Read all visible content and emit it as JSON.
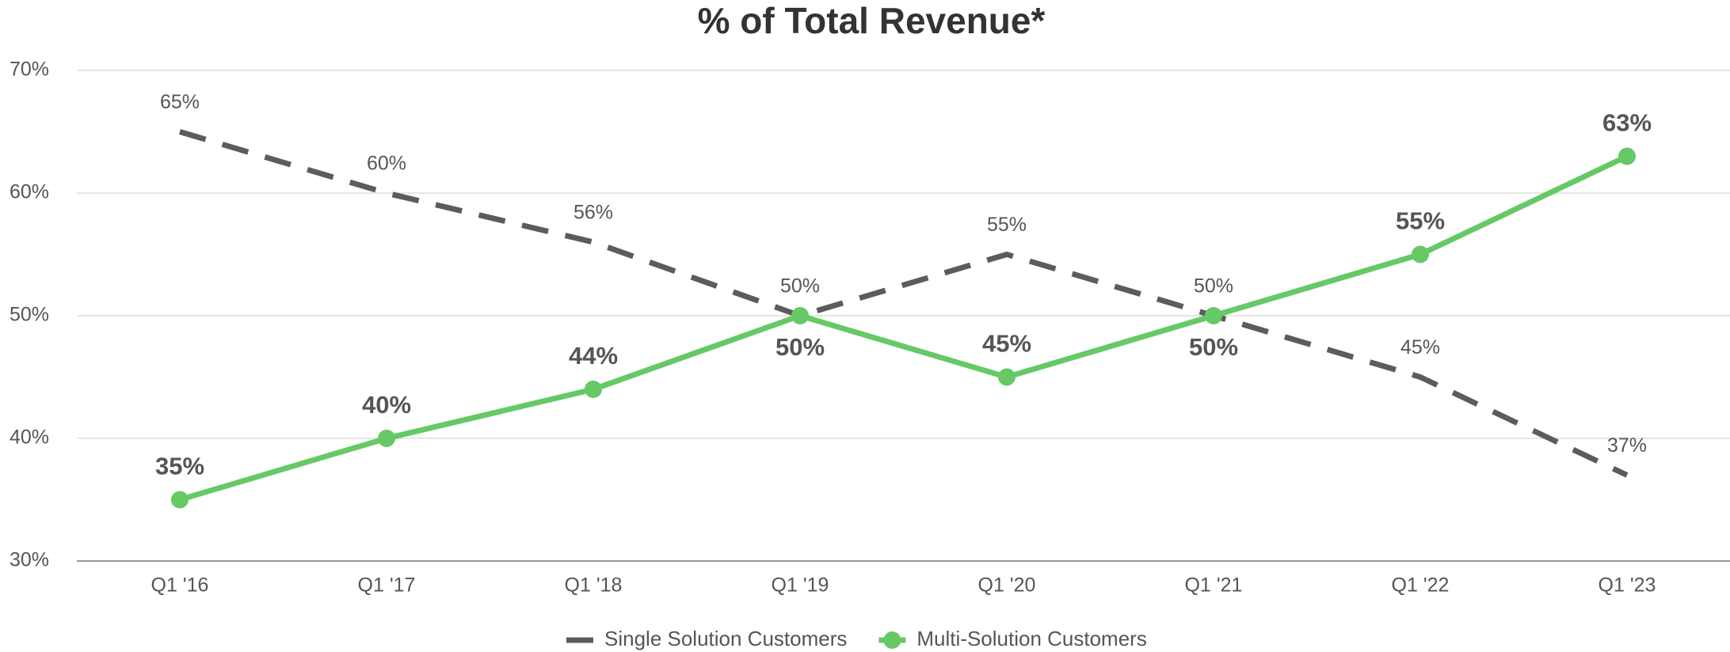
{
  "chart_data": {
    "type": "line",
    "title": "% of Total Revenue*",
    "categories": [
      "Q1 '16",
      "Q1 '17",
      "Q1 '18",
      "Q1 '19",
      "Q1 '20",
      "Q1 '21",
      "Q1 '22",
      "Q1 '23"
    ],
    "series": [
      {
        "name": "Single Solution Customers",
        "color": "#5c5c5c",
        "dashed": true,
        "values": [
          65,
          60,
          56,
          50,
          55,
          50,
          45,
          37
        ],
        "value_labels": [
          "65%",
          "60%",
          "56%",
          "50%",
          "55%",
          "50%",
          "45%",
          "37%"
        ]
      },
      {
        "name": "Multi-Solution Customers",
        "color": "#66c966",
        "markers": true,
        "values": [
          35,
          40,
          44,
          50,
          45,
          50,
          55,
          63
        ],
        "value_labels": [
          "35%",
          "40%",
          "44%",
          "50%",
          "45%",
          "50%",
          "55%",
          "63%"
        ]
      }
    ],
    "ylim": [
      30,
      70
    ],
    "yticks": [
      {
        "value": 30,
        "label": "30%"
      },
      {
        "value": 40,
        "label": "40%"
      },
      {
        "value": 50,
        "label": "50%"
      },
      {
        "value": 60,
        "label": "60%"
      },
      {
        "value": 70,
        "label": "70%"
      }
    ],
    "grid": true,
    "legend": "bottom"
  }
}
